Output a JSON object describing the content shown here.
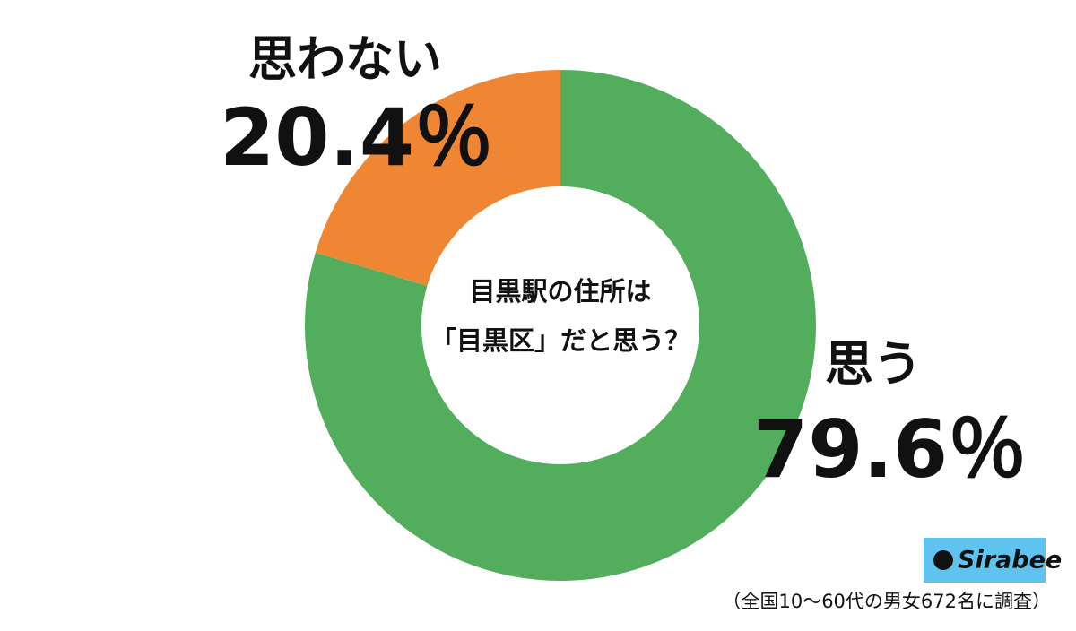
{
  "chart_data": {
    "type": "pie",
    "donut": true,
    "categories": [
      "思う",
      "思わない"
    ],
    "values": [
      79.6,
      20.4
    ],
    "value_labels": [
      "79.6％",
      "20.4％"
    ],
    "colors": [
      "#52ae5c",
      "#ee8633"
    ],
    "center_text": [
      "目黒駅の住所は",
      "「目黒区」だと思う？"
    ],
    "logo": "Sirabee",
    "note": "（全国10～60代の男女672名に調査）"
  }
}
